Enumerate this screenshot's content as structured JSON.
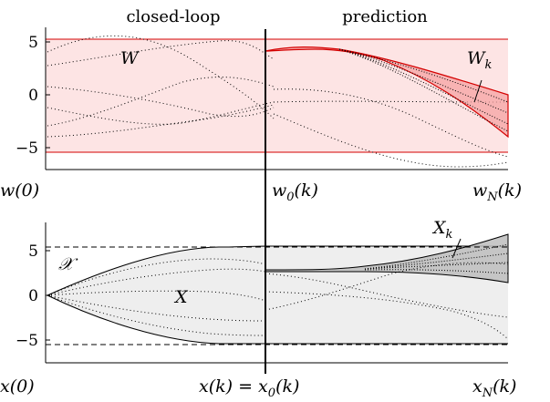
{
  "headers": {
    "left": "closed-loop",
    "right": "prediction"
  },
  "top_plot": {
    "yticks": [
      "5",
      "0",
      "−5"
    ],
    "region_label": "W",
    "tube_label_main": "W",
    "tube_label_sub": "k",
    "xlabels": {
      "start": "w(0)",
      "mid_main": "w",
      "mid_sub": "0",
      "mid_tail": "(k)",
      "end_main": "w",
      "end_sub": "N",
      "end_tail": "(k)"
    }
  },
  "bottom_plot": {
    "yticks": [
      "5",
      "0",
      "−5"
    ],
    "constraint_label": "𝒳",
    "region_label": "X",
    "tube_label_main": "X",
    "tube_label_sub": "k",
    "xlabels": {
      "start": "x(0)",
      "mid_a": "x(k) = x",
      "mid_sub": "0",
      "mid_tail": "(k)",
      "end_main": "x",
      "end_sub": "N",
      "end_tail": "(k)"
    }
  },
  "colors": {
    "w_fill": "#fde4e4",
    "w_bound": "#d40000",
    "x_fill": "#eeeeee",
    "x_tube": "#c8c8c8",
    "axis": "#000000"
  }
}
